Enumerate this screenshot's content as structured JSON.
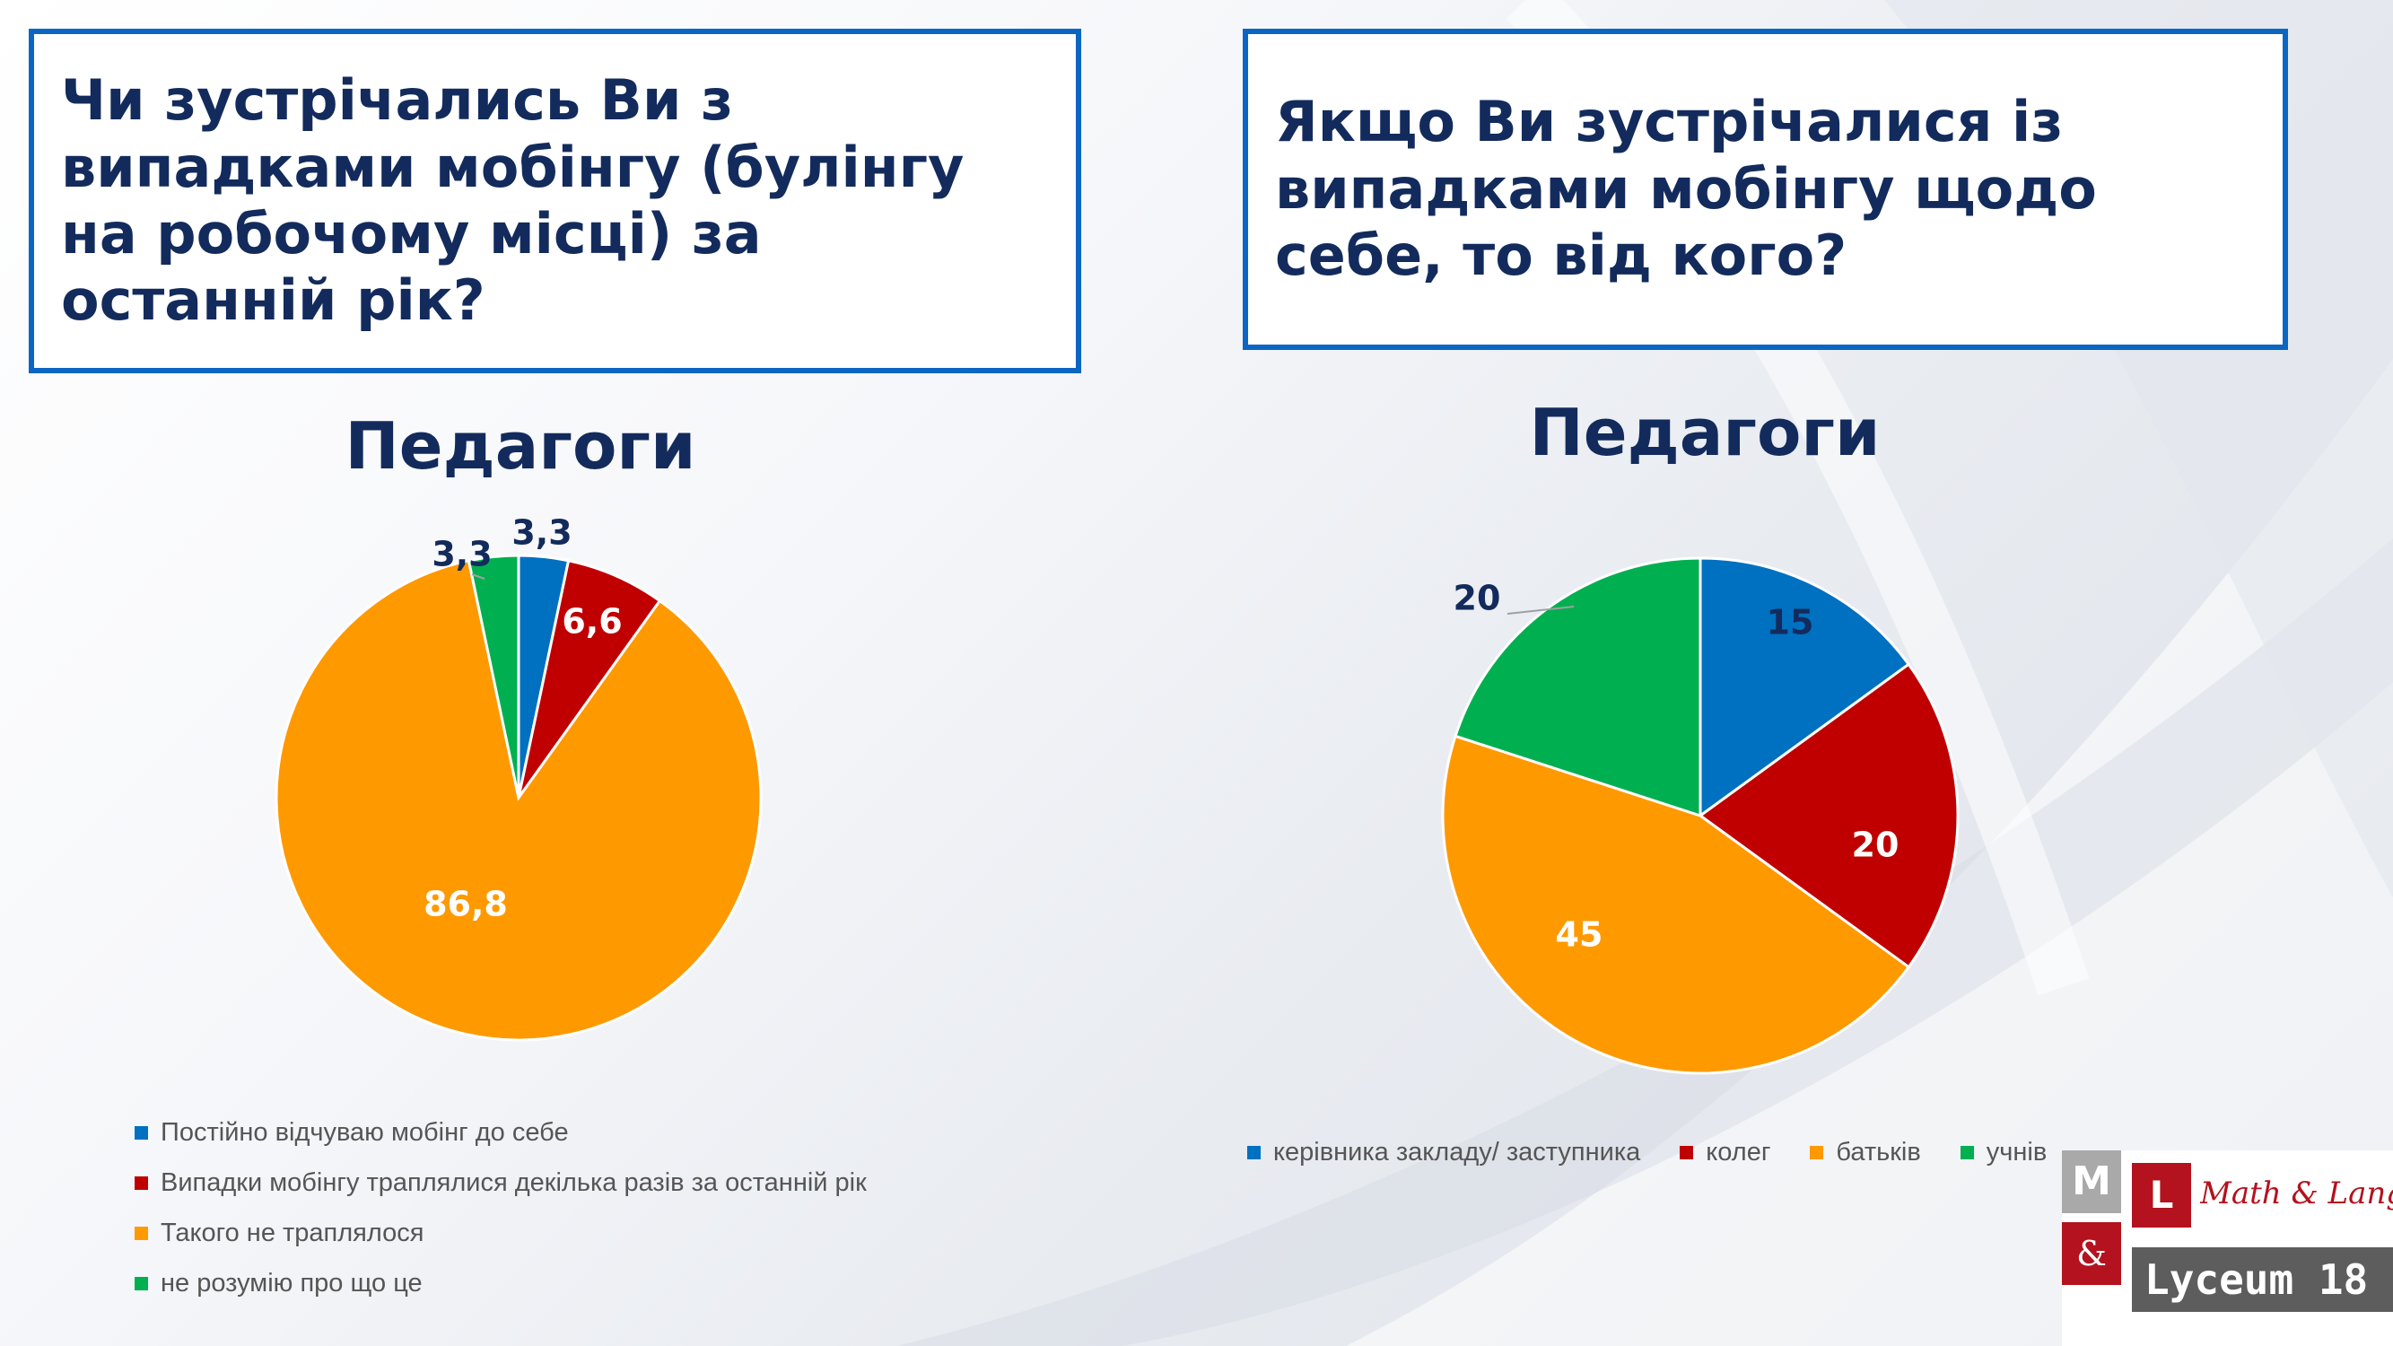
{
  "left_panel": {
    "question": "Чи зустрічались Ви з випадками мобінгу (булінгу на робочому місці) за останній рік?"
  },
  "right_panel": {
    "question": "Якщо Ви зустрічалися із випадками мобінгу щодо себе, то від кого?"
  },
  "chart_data": [
    {
      "type": "pie",
      "title": "Педагоги",
      "categories": [
        "Постійно відчуваю мобінг до себе",
        "Випадки мобінгу траплялися декілька разів за останній рік",
        "Такого не траплялося",
        "не розумію про що це"
      ],
      "values": [
        3.3,
        6.6,
        86.8,
        3.3
      ],
      "labels": [
        "3,3",
        "6,6",
        "86,8",
        "3,3"
      ],
      "colors": [
        "#0070c0",
        "#c00000",
        "#ff9900",
        "#00b050"
      ],
      "legend_position": "bottom"
    },
    {
      "type": "pie",
      "title": "Педагоги",
      "categories": [
        "керівника закладу/ заступника",
        "колег",
        "батьків",
        "учнів"
      ],
      "values": [
        15,
        20,
        45,
        20
      ],
      "labels": [
        "15",
        "20",
        "45",
        "20"
      ],
      "colors": [
        "#0070c0",
        "#c00000",
        "#ff9900",
        "#00b050"
      ],
      "legend_position": "bottom"
    }
  ],
  "logo": {
    "m": "M",
    "l": "L",
    "amp": "&",
    "script": "Math & Languages",
    "name": "Lyceum 18"
  }
}
